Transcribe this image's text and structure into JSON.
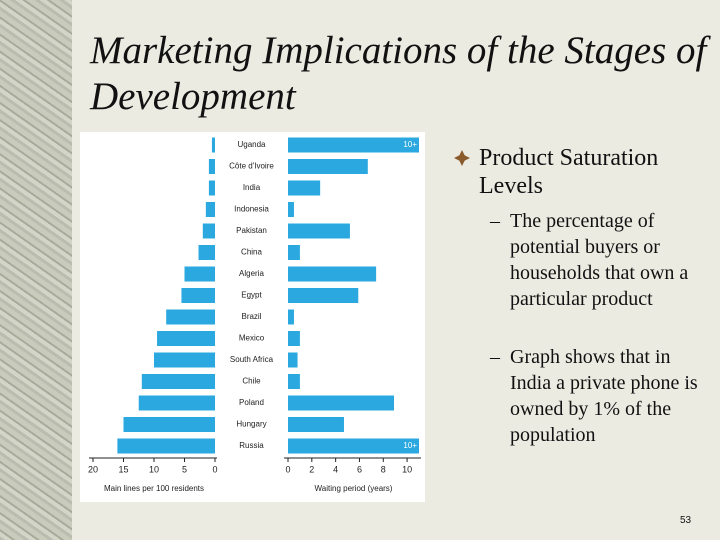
{
  "title": "Marketing Implications of the Stages of Development",
  "bullets": [
    {
      "text": "Product Saturation Levels",
      "subbullets": [
        "The percentage of potential buyers or households that own a particular product",
        "Graph shows that in India a private phone is owned by 1% of the population"
      ]
    }
  ],
  "page_number": "53",
  "chart_data": {
    "type": "bar",
    "orientation": "horizontal",
    "categories": [
      "Uganda",
      "Côte d'Ivoire",
      "India",
      "Indonesia",
      "Pakistan",
      "China",
      "Algeria",
      "Egypt",
      "Brazil",
      "Mexico",
      "South Africa",
      "Chile",
      "Poland",
      "Hungary",
      "Russia"
    ],
    "xlabel": "Main lines per 100 residents",
    "xlim": [
      20,
      0
    ],
    "xticks": [
      20,
      15,
      10,
      5,
      0
    ],
    "x2label": "Waiting period (years)",
    "x2lim": [
      0,
      11
    ],
    "x2ticks": [
      0,
      2,
      4,
      6,
      8,
      10
    ],
    "series": [
      {
        "axis": "x",
        "color": "#2aa8df",
        "values": [
          0.5,
          1,
          1,
          1.5,
          2,
          2.7,
          5,
          5.5,
          8,
          9.5,
          10,
          12,
          12.5,
          15,
          16
        ]
      },
      {
        "axis": "x2",
        "color": "#2aa8df",
        "values": [
          11,
          6.7,
          2.7,
          0.5,
          5.2,
          1,
          7.4,
          5.9,
          0.5,
          1,
          0.8,
          1,
          8.9,
          4.7,
          11
        ],
        "value_labels": [
          "10+",
          null,
          null,
          null,
          null,
          null,
          null,
          null,
          null,
          null,
          null,
          null,
          null,
          null,
          "10+"
        ]
      }
    ]
  }
}
